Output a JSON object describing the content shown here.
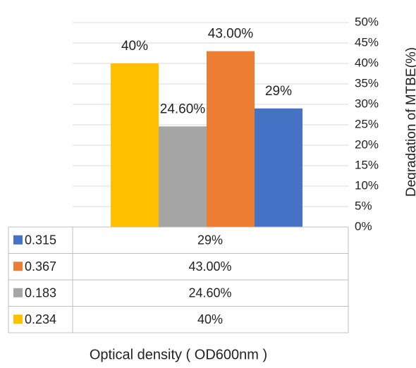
{
  "chart_data": {
    "type": "bar",
    "categories": [
      "0.234",
      "0.183",
      "0.367",
      "0.315"
    ],
    "values": [
      40,
      24.6,
      43,
      29
    ],
    "data_labels": [
      "40%",
      "24.60%",
      "43.00%",
      "29%"
    ],
    "colors": [
      "#FFC000",
      "#A5A5A5",
      "#ED7D31",
      "#4472C4"
    ],
    "ylabel": "Degradation of MTBE(%)",
    "xlabel": "Optical density ( OD600nm )",
    "ylim": [
      0,
      50
    ],
    "y_ticks": [
      "0%",
      "5%",
      "10%",
      "15%",
      "20%",
      "25%",
      "30%",
      "35%",
      "40%",
      "45%",
      "50%"
    ],
    "y_axis_side": "right",
    "grid": true,
    "data_table": [
      {
        "key": "0.315",
        "value": "29%",
        "color": "#4472C4"
      },
      {
        "key": "0.367",
        "value": "43.00%",
        "color": "#ED7D31"
      },
      {
        "key": "0.183",
        "value": "24.60%",
        "color": "#A5A5A5"
      },
      {
        "key": "0.234",
        "value": "40%",
        "color": "#FFC000"
      }
    ]
  }
}
